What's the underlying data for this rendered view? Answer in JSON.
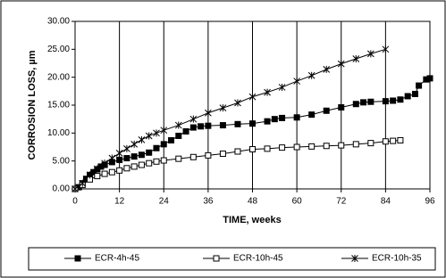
{
  "chart_data": {
    "type": "line",
    "xlabel": "TIME, weeks",
    "ylabel": "CORROSION LOSS, µm",
    "xlim": [
      0,
      96
    ],
    "xticks": [
      0,
      12,
      24,
      36,
      48,
      60,
      72,
      84,
      96
    ],
    "ylim": [
      0,
      30
    ],
    "yticks": [
      {
        "value": 0,
        "label": "0.00"
      },
      {
        "value": 5,
        "label": "5.00"
      },
      {
        "value": 10,
        "label": "10.00"
      },
      {
        "value": 15,
        "label": "15.00"
      },
      {
        "value": 20,
        "label": "20.00"
      },
      {
        "value": 25,
        "label": "25.00"
      },
      {
        "value": 30,
        "label": "30.00"
      }
    ],
    "xgrid": true,
    "legend": "bottom",
    "series": [
      {
        "name": "ECR-4h-45",
        "color": "#000000",
        "marker": "filled-square",
        "x": [
          0,
          1,
          2,
          3,
          4,
          5,
          6,
          7,
          8,
          10,
          12,
          14,
          16,
          18,
          20,
          22,
          24,
          26,
          28,
          30,
          32,
          34,
          36,
          40,
          44,
          48,
          52,
          54,
          56,
          60,
          64,
          68,
          72,
          76,
          78,
          80,
          84,
          86,
          88,
          90,
          92,
          93,
          95,
          96
        ],
        "values": [
          0,
          0.3,
          1,
          1.8,
          2.5,
          3,
          3.5,
          4,
          4.3,
          4.8,
          5.2,
          5.5,
          5.8,
          6.1,
          6.5,
          7.3,
          8,
          8.7,
          9.5,
          10.3,
          11,
          11.2,
          11.3,
          11.4,
          11.6,
          11.7,
          12.1,
          12.5,
          12.7,
          12.8,
          13.3,
          14,
          14.6,
          15.2,
          15.5,
          15.6,
          15.7,
          15.8,
          16,
          16.6,
          17,
          18.5,
          19.6,
          19.8
        ]
      },
      {
        "name": "ECR-10h-45",
        "color": "#000000",
        "marker": "open-square",
        "x": [
          0,
          2,
          4,
          6,
          8,
          10,
          12,
          14,
          16,
          18,
          20,
          22,
          24,
          28,
          32,
          36,
          40,
          44,
          48,
          52,
          56,
          60,
          64,
          68,
          72,
          76,
          80,
          84,
          86,
          88
        ],
        "values": [
          0,
          0.7,
          1.7,
          2.3,
          2.7,
          3,
          3.3,
          3.7,
          4,
          4.3,
          4.6,
          4.9,
          5.1,
          5.4,
          5.7,
          6,
          6.3,
          6.7,
          7.1,
          7.2,
          7.4,
          7.5,
          7.6,
          7.7,
          7.8,
          8,
          8.2,
          8.5,
          8.6,
          8.7
        ]
      },
      {
        "name": "ECR-10h-35",
        "color": "#000000",
        "marker": "star",
        "x": [
          0,
          2,
          4,
          6,
          8,
          10,
          12,
          14,
          16,
          18,
          20,
          22,
          24,
          28,
          32,
          36,
          40,
          44,
          48,
          52,
          56,
          60,
          64,
          68,
          72,
          76,
          80,
          84
        ],
        "values": [
          0,
          1,
          2.5,
          3.6,
          4.6,
          5.5,
          6.4,
          7.2,
          8,
          8.8,
          9.5,
          10,
          10.5,
          11.4,
          12.5,
          13.6,
          14.5,
          15.4,
          16.5,
          17.3,
          18.2,
          19.3,
          20.3,
          21.4,
          22.4,
          23.3,
          24.2,
          25
        ]
      }
    ]
  }
}
